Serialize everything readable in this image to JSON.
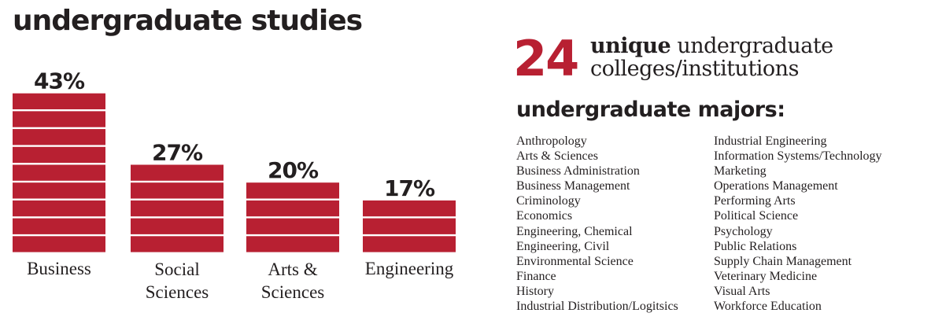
{
  "title": "undergraduate studies",
  "stat": {
    "number": "24",
    "bold_word": "unique",
    "line1_rest": "undergraduate",
    "line2": "colleges/institutions"
  },
  "majors_heading": "undergraduate majors:",
  "majors_col1": [
    "Anthropology",
    "Arts & Sciences",
    "Business Administration",
    "Business Management",
    "Criminology",
    "Economics",
    "Engineering, Chemical",
    "Engineering, Civil",
    "Environmental Science",
    "Finance",
    "History",
    "Industrial Distribution/Logitsics"
  ],
  "majors_col2": [
    "Industrial Engineering",
    "Information Systems/Technology",
    "Marketing",
    "Operations Management",
    "Performing Arts",
    "Political Science",
    "Psychology",
    "Public Relations",
    "Supply Chain Management",
    "Veterinary Medicine",
    "Visual Arts",
    "Workforce Education"
  ],
  "colors": {
    "accent": "#b82032",
    "text": "#231f20"
  },
  "chart_data": {
    "type": "bar",
    "title": "undergraduate studies",
    "categories": [
      "Business",
      "Social Sciences",
      "Arts & Sciences",
      "Engineering"
    ],
    "category_lines": [
      [
        "Business"
      ],
      [
        "Social",
        "Sciences"
      ],
      [
        "Arts &",
        "Sciences"
      ],
      [
        "Engineering"
      ]
    ],
    "values": [
      43,
      27,
      20,
      17
    ],
    "data_labels": [
      "43%",
      "27%",
      "20%",
      "17%"
    ],
    "stacked_blocks": [
      9,
      5,
      4,
      3
    ],
    "unit": "%",
    "grid": false,
    "axes_visible": false,
    "color": "#b82032"
  }
}
